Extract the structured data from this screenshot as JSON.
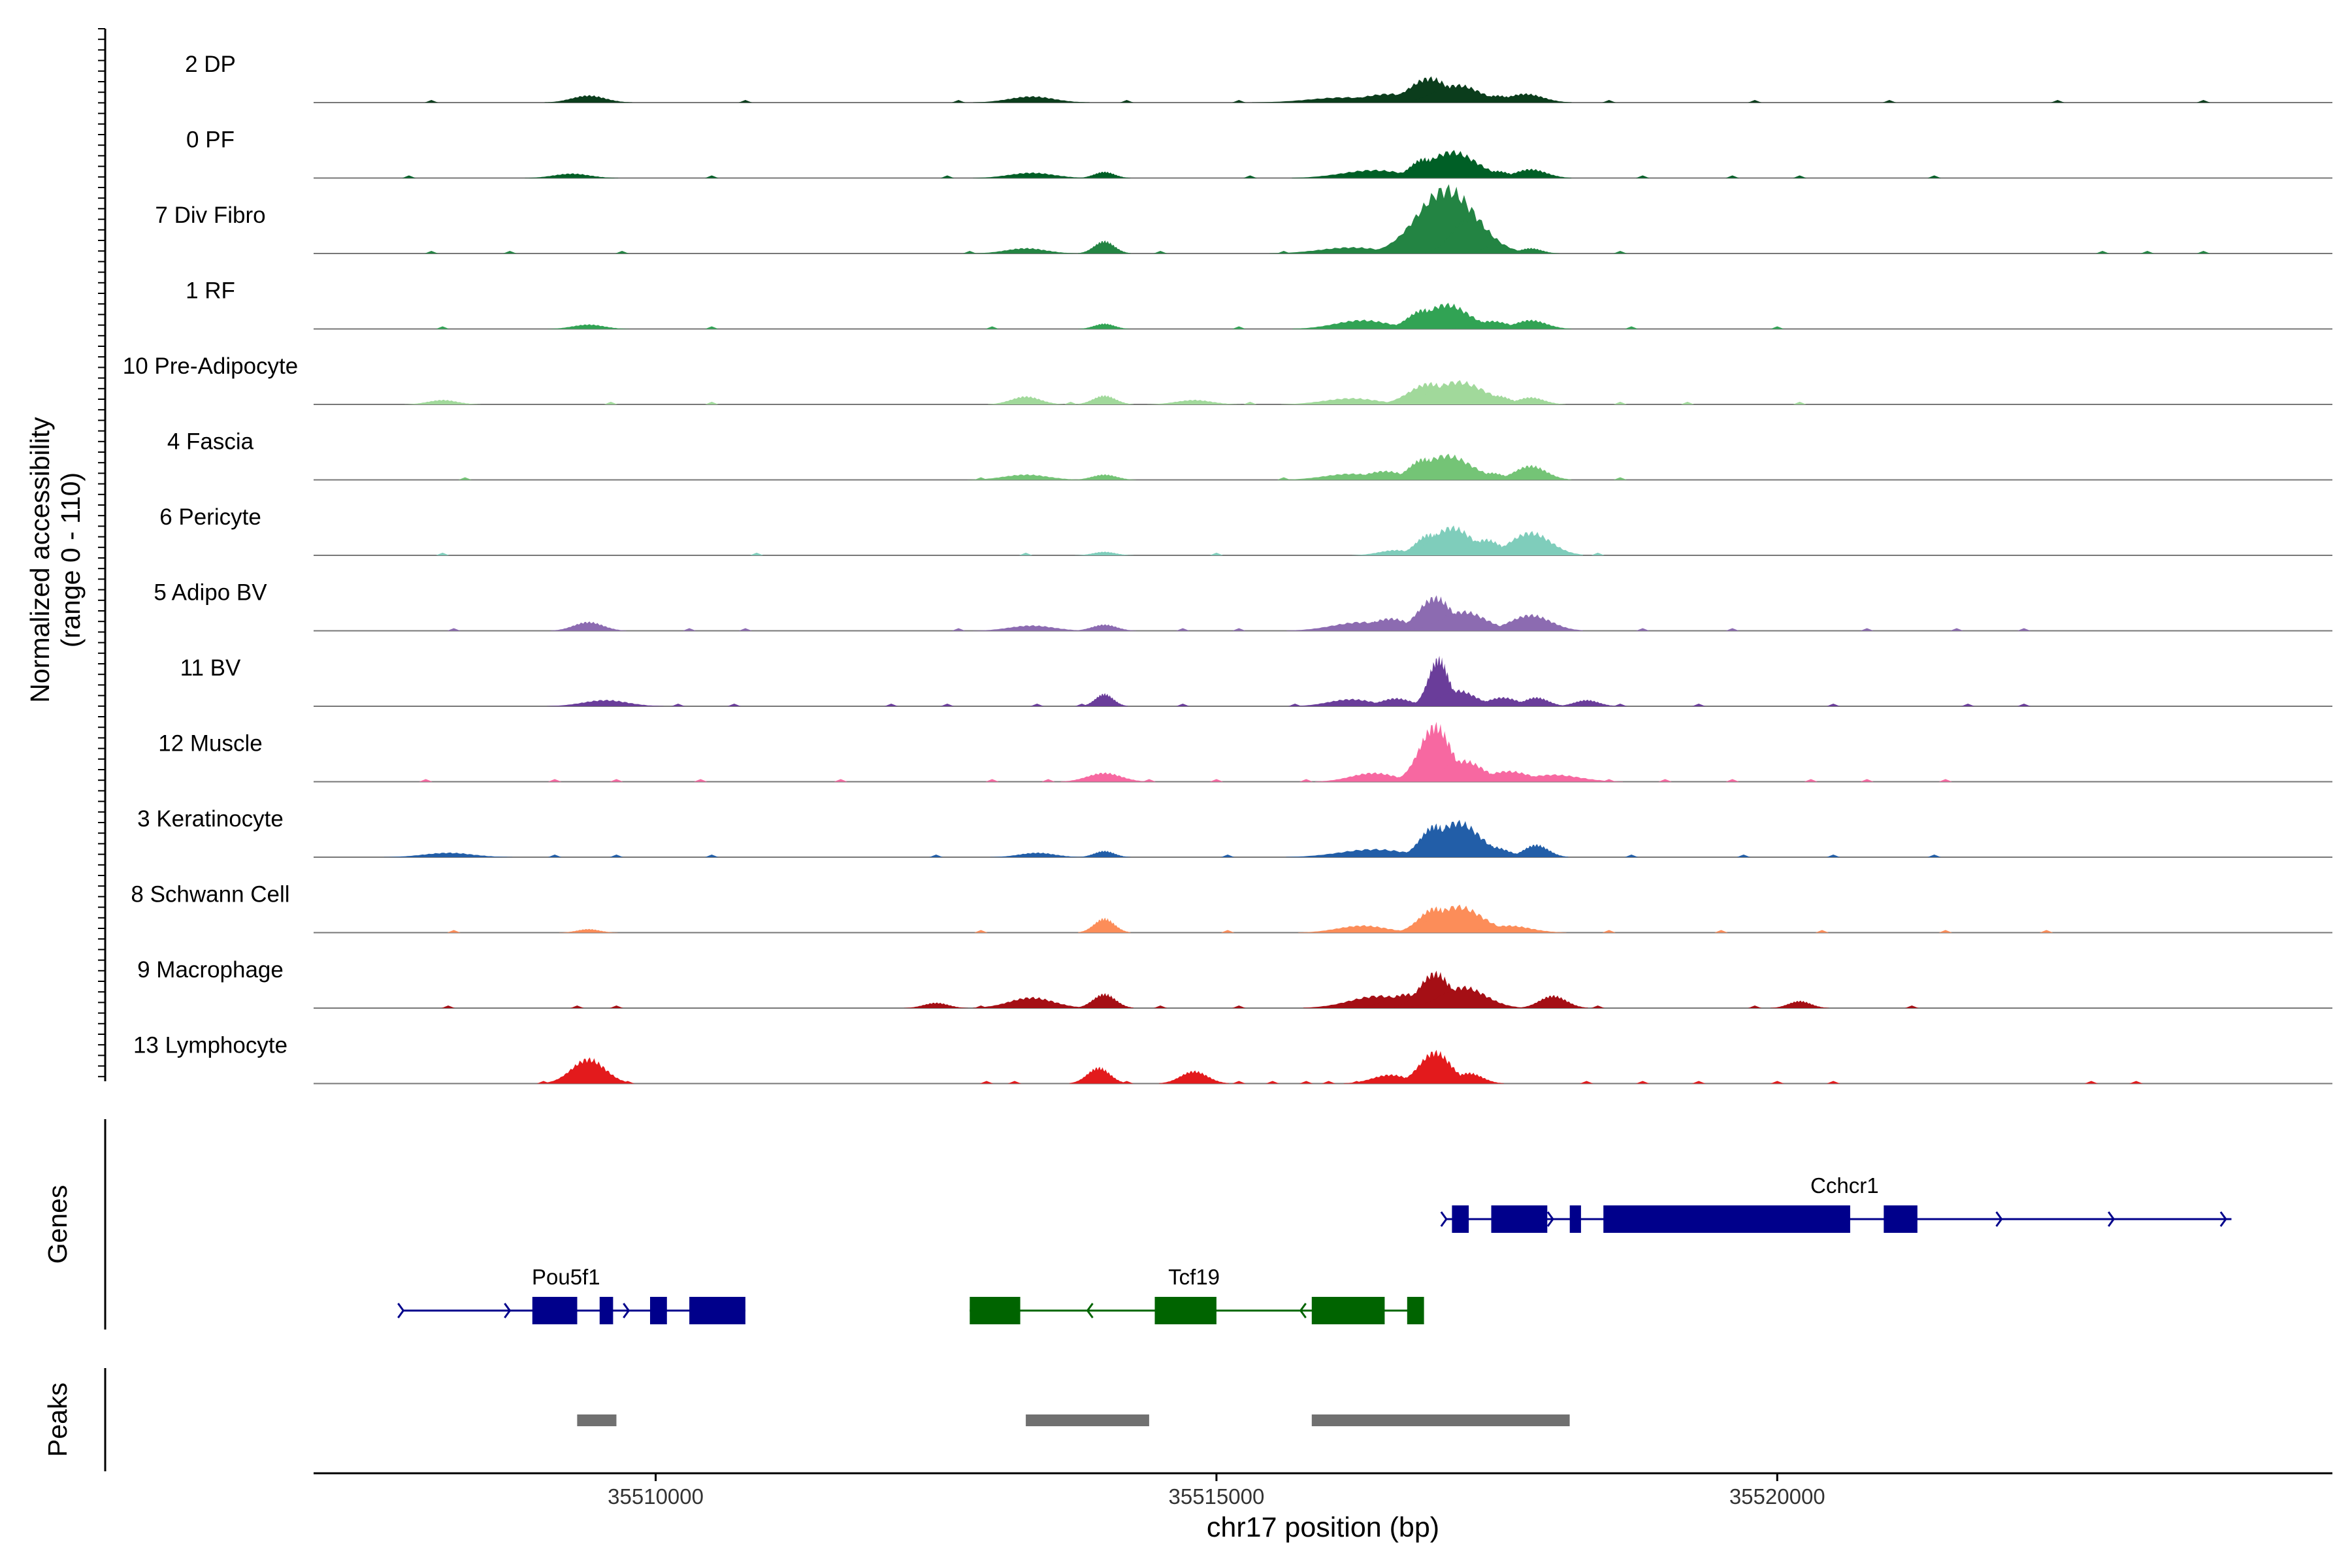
{
  "chart_data": {
    "type": "area",
    "title": "",
    "ylabel_line1": "Normalized accessibility",
    "ylabel_line2": "(range 0 - 110)",
    "y_range": [
      0,
      110
    ],
    "xlabel": "chr17 position (bp)",
    "xlim": [
      35506950,
      35524950
    ],
    "x_ticks": [
      35510000,
      35515000,
      35520000
    ],
    "x_tick_labels": [
      "35510000",
      "35515000",
      "35520000"
    ],
    "genes_label": "Genes",
    "peaks_label": "Peaks",
    "tracks": [
      {
        "name": "2 DP",
        "color": "#0b3d1c",
        "peaks": [
          [
            35509400,
            8,
            150
          ],
          [
            35513350,
            7,
            200
          ],
          [
            35516150,
            6,
            320
          ],
          [
            35516550,
            10,
            260
          ],
          [
            35516900,
            28,
            180
          ],
          [
            35517150,
            20,
            200
          ],
          [
            35517500,
            8,
            140
          ],
          [
            35517750,
            10,
            160
          ]
        ],
        "specks": [
          35508000,
          35510800,
          35512700,
          35514200,
          35515200,
          35515800,
          35518500,
          35519800,
          35521000,
          35522500,
          35523800
        ]
      },
      {
        "name": "0 PF",
        "color": "#005f26",
        "peaks": [
          [
            35509250,
            5,
            160
          ],
          [
            35513350,
            6,
            200
          ],
          [
            35514000,
            7,
            90
          ],
          [
            35516400,
            9,
            280
          ],
          [
            35516850,
            22,
            120
          ],
          [
            35517100,
            30,
            220
          ],
          [
            35517500,
            8,
            120
          ],
          [
            35517800,
            10,
            140
          ]
        ],
        "specks": [
          35507800,
          35510500,
          35512600,
          35515300,
          35518800,
          35519600,
          35520200,
          35521400
        ]
      },
      {
        "name": "7 Div Fibro",
        "color": "#238443",
        "peaks": [
          [
            35513300,
            6,
            180
          ],
          [
            35514000,
            14,
            90
          ],
          [
            35516200,
            7,
            280
          ],
          [
            35516800,
            32,
            140
          ],
          [
            35517050,
            74,
            260
          ],
          [
            35517250,
            40,
            150
          ],
          [
            35517500,
            10,
            120
          ],
          [
            35517800,
            6,
            100
          ]
        ],
        "specks": [
          35508000,
          35508700,
          35509700,
          35512800,
          35514500,
          35515600,
          35518600,
          35522900,
          35523300,
          35523800
        ]
      },
      {
        "name": "1 RF",
        "color": "#31a354",
        "peaks": [
          [
            35509400,
            5,
            140
          ],
          [
            35514000,
            6,
            90
          ],
          [
            35516300,
            10,
            240
          ],
          [
            35516850,
            22,
            140
          ],
          [
            35517050,
            28,
            200
          ],
          [
            35517450,
            9,
            160
          ],
          [
            35517800,
            10,
            140
          ]
        ],
        "specks": [
          35508100,
          35510500,
          35513000,
          35515200,
          35518700,
          35520000
        ]
      },
      {
        "name": "10 Pre-Adipocyte",
        "color": "#a1d99b",
        "peaks": [
          [
            35508100,
            5,
            130
          ],
          [
            35513300,
            9,
            130
          ],
          [
            35514000,
            10,
            100
          ],
          [
            35514800,
            5,
            160
          ],
          [
            35516200,
            7,
            240
          ],
          [
            35516900,
            24,
            180
          ],
          [
            35517150,
            26,
            240
          ],
          [
            35517500,
            10,
            120
          ],
          [
            35517800,
            8,
            120
          ]
        ],
        "specks": [
          35509600,
          35510500,
          35513700,
          35515300,
          35516600,
          35518600,
          35519200,
          35520200
        ]
      },
      {
        "name": "4 Fascia",
        "color": "#74c476",
        "peaks": [
          [
            35513300,
            6,
            200
          ],
          [
            35514000,
            6,
            110
          ],
          [
            35516200,
            7,
            240
          ],
          [
            35516500,
            10,
            180
          ],
          [
            35516850,
            24,
            130
          ],
          [
            35517050,
            28,
            220
          ],
          [
            35517450,
            8,
            120
          ],
          [
            35517800,
            16,
            140
          ]
        ],
        "specks": [
          35508300,
          35512900,
          35515600,
          35518600
        ]
      },
      {
        "name": "6 Pericyte",
        "color": "#7fcdbb",
        "peaks": [
          [
            35514000,
            4,
            100
          ],
          [
            35516600,
            6,
            150
          ],
          [
            35516900,
            24,
            120
          ],
          [
            35517100,
            32,
            180
          ],
          [
            35517400,
            18,
            140
          ],
          [
            35517800,
            26,
            180
          ]
        ],
        "specks": [
          35508100,
          35510900,
          35513300,
          35515000,
          35518400
        ]
      },
      {
        "name": "5 Adipo BV",
        "color": "#8c6bb1",
        "peaks": [
          [
            35509400,
            10,
            130
          ],
          [
            35513350,
            6,
            200
          ],
          [
            35514000,
            7,
            110
          ],
          [
            35516300,
            10,
            260
          ],
          [
            35516550,
            14,
            180
          ],
          [
            35516950,
            38,
            150
          ],
          [
            35517200,
            22,
            200
          ],
          [
            35517800,
            18,
            180
          ]
        ],
        "specks": [
          35508200,
          35510300,
          35510800,
          35512700,
          35514700,
          35515200,
          35518800,
          35519600,
          35520800,
          35521600,
          35522200
        ]
      },
      {
        "name": "11 BV",
        "color": "#6a3d9a",
        "peaks": [
          [
            35509550,
            7,
            200
          ],
          [
            35514000,
            14,
            80
          ],
          [
            35516200,
            8,
            200
          ],
          [
            35516600,
            9,
            140
          ],
          [
            35516980,
            54,
            90
          ],
          [
            35517150,
            18,
            160
          ],
          [
            35517550,
            10,
            140
          ],
          [
            35517850,
            10,
            110
          ],
          [
            35518300,
            7,
            110
          ]
        ],
        "specks": [
          35510200,
          35510700,
          35512100,
          35512600,
          35513400,
          35513800,
          35514700,
          35515700,
          35518600,
          35519300,
          35520500,
          35521700,
          35522200
        ]
      },
      {
        "name": "12 Muscle",
        "color": "#f768a1",
        "peaks": [
          [
            35514000,
            10,
            150
          ],
          [
            35516400,
            10,
            200
          ],
          [
            35516950,
            64,
            140
          ],
          [
            35517200,
            24,
            180
          ],
          [
            35517600,
            12,
            200
          ],
          [
            35518000,
            8,
            240
          ]
        ],
        "specks": [
          35507950,
          35509100,
          35509650,
          35510400,
          35511650,
          35513000,
          35513500,
          35514400,
          35515000,
          35515800,
          35518500,
          35519000,
          35519600,
          35520300,
          35520800,
          35521500
        ]
      },
      {
        "name": "3 Keratinocyte",
        "color": "#225ea8",
        "peaks": [
          [
            35508150,
            5,
            220
          ],
          [
            35513400,
            5,
            160
          ],
          [
            35514000,
            7,
            90
          ],
          [
            35516400,
            9,
            300
          ],
          [
            35516950,
            36,
            130
          ],
          [
            35517150,
            40,
            200
          ],
          [
            35517450,
            12,
            150
          ],
          [
            35517850,
            14,
            110
          ]
        ],
        "specks": [
          35509100,
          35509650,
          35510500,
          35512500,
          35515100,
          35518700,
          35519700,
          35520500,
          35521400
        ]
      },
      {
        "name": "8 Schwann Cell",
        "color": "#fc8d59",
        "peaks": [
          [
            35509400,
            4,
            100
          ],
          [
            35514000,
            16,
            90
          ],
          [
            35516300,
            8,
            220
          ],
          [
            35516950,
            28,
            140
          ],
          [
            35517150,
            30,
            220
          ],
          [
            35517600,
            8,
            200
          ]
        ],
        "specks": [
          35508200,
          35512900,
          35515100,
          35518500,
          35519500,
          35520400,
          35521500,
          35522400
        ]
      },
      {
        "name": "9 Macrophage",
        "color": "#a50f15",
        "peaks": [
          [
            35512500,
            6,
            110
          ],
          [
            35513350,
            12,
            200
          ],
          [
            35514000,
            16,
            100
          ],
          [
            35516450,
            14,
            260
          ],
          [
            35516700,
            16,
            180
          ],
          [
            35516950,
            40,
            140
          ],
          [
            35517200,
            24,
            200
          ],
          [
            35518000,
            14,
            120
          ],
          [
            35520200,
            8,
            100
          ]
        ],
        "specks": [
          35508150,
          35509300,
          35509650,
          35512900,
          35514500,
          35515200,
          35518400,
          35519800,
          35521200
        ]
      },
      {
        "name": "13 Lymphocyte",
        "color": "#e31a1c",
        "peaks": [
          [
            35509400,
            28,
            150
          ],
          [
            35513950,
            18,
            100
          ],
          [
            35514800,
            14,
            120
          ],
          [
            35516550,
            10,
            160
          ],
          [
            35516950,
            36,
            140
          ],
          [
            35517250,
            12,
            120
          ]
        ],
        "specks": [
          35509000,
          35509750,
          35512950,
          35513200,
          35514200,
          35515200,
          35515500,
          35515800,
          35516000,
          35516250,
          35518300,
          35518800,
          35519300,
          35520000,
          35520500,
          35522800,
          35523200
        ]
      }
    ],
    "genes": [
      {
        "name": "Cchcr1",
        "color": "#00008b",
        "start": 35517050,
        "end": 35524050,
        "strand": "+",
        "row": 0,
        "exons": [
          [
            35517100,
            35517250
          ],
          [
            35517450,
            35517950
          ],
          [
            35518150,
            35518250
          ],
          [
            35518450,
            35520650
          ],
          [
            35520950,
            35521250
          ]
        ],
        "arrows": [
          35517050,
          35518000,
          35522000,
          35523000,
          35524000
        ],
        "label_x": 35520600
      },
      {
        "name": "Pou5f1",
        "color": "#00008b",
        "start": 35507750,
        "end": 35510800,
        "strand": "+",
        "row": 1,
        "exons": [
          [
            35508900,
            35509300
          ],
          [
            35509500,
            35509620
          ],
          [
            35509950,
            35510100
          ],
          [
            35510300,
            35510800
          ]
        ],
        "arrows": [
          35507750,
          35508700,
          35509760
        ],
        "label_x": 35509200
      },
      {
        "name": "Tcf19",
        "color": "#006400",
        "start": 35512800,
        "end": 35516850,
        "strand": "-",
        "row": 1,
        "exons": [
          [
            35512800,
            35513250
          ],
          [
            35514450,
            35515000
          ],
          [
            35515850,
            35516500
          ],
          [
            35516700,
            35516850
          ]
        ],
        "arrows": [
          35513850,
          35515750
        ],
        "label_x": 35514800
      }
    ],
    "peak_regions": [
      [
        35509300,
        35509650
      ],
      [
        35513300,
        35514400
      ],
      [
        35515850,
        35518150
      ]
    ]
  }
}
